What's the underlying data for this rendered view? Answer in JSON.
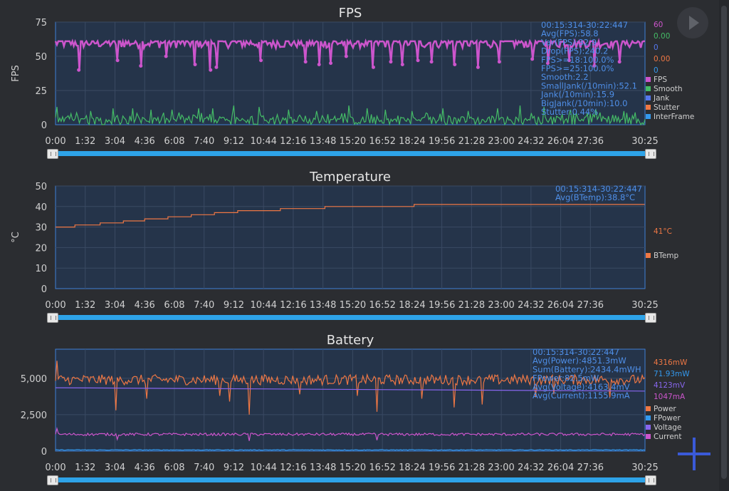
{
  "time_ticks": [
    "0:00",
    "1:32",
    "3:04",
    "4:36",
    "6:08",
    "7:40",
    "9:12",
    "10:44",
    "12:16",
    "13:48",
    "15:20",
    "16:52",
    "18:24",
    "19:56",
    "21:28",
    "23:00",
    "24:32",
    "26:04",
    "27:36",
    "30:25"
  ],
  "chart_data": [
    {
      "type": "line",
      "title": "FPS",
      "ylabel": "FPS",
      "ylim": [
        0,
        75
      ],
      "yticks": [
        0,
        25,
        50,
        75
      ],
      "grid": true,
      "stats": [
        "00:15:314-30:22:447",
        "Avg(FPS):58.8",
        "Var(FPS):32.9",
        "Drop(FPS):240.2",
        "FPS>=18:100.0%",
        "FPS>=25:100.0%",
        "Smooth:2.2",
        "SmallJank(/10min):52.1",
        "Jank(/10min):15.9",
        "BigJank(/10min):10.0",
        "Stutter:0.44%"
      ],
      "current_values": [
        {
          "text": "60",
          "color": "#cc55cc"
        },
        {
          "text": "0.00",
          "color": "#44bb66"
        },
        {
          "text": "0",
          "color": "#5577ee"
        },
        {
          "text": "0.00",
          "color": "#ee7744"
        },
        {
          "text": "0",
          "color": "#3399ee"
        }
      ],
      "legend": [
        {
          "name": "FPS",
          "color": "#cc55cc"
        },
        {
          "name": "Smooth",
          "color": "#44bb66"
        },
        {
          "name": "Jank",
          "color": "#5577ee"
        },
        {
          "name": "Stutter",
          "color": "#ee7744"
        },
        {
          "name": "InterFrame",
          "color": "#3399ee"
        }
      ],
      "series": [
        {
          "name": "FPS",
          "color": "#cc55cc",
          "baseline": 60,
          "noise": 4,
          "dips": [
            [
              1.2,
              40
            ],
            [
              3.2,
              47
            ],
            [
              4.4,
              43
            ],
            [
              5.7,
              50
            ],
            [
              7.2,
              44
            ],
            [
              8.0,
              40
            ],
            [
              8.3,
              42
            ],
            [
              10.6,
              47
            ],
            [
              12.9,
              46
            ],
            [
              13.6,
              44
            ],
            [
              14.2,
              45
            ],
            [
              15.0,
              50
            ],
            [
              16.4,
              42
            ],
            [
              17.3,
              46
            ],
            [
              17.9,
              44
            ],
            [
              18.7,
              47
            ],
            [
              19.4,
              46
            ],
            [
              20.6,
              44
            ],
            [
              21.8,
              42
            ],
            [
              22.9,
              46
            ],
            [
              24.6,
              48
            ],
            [
              25.4,
              45
            ],
            [
              26.5,
              47
            ],
            [
              27.8,
              43
            ],
            [
              29.1,
              46
            ]
          ]
        },
        {
          "name": "Smooth",
          "color": "#44bb66",
          "baseline": 3,
          "noise": 3,
          "spikes": [
            [
              0.1,
              13
            ],
            [
              1.8,
              10
            ],
            [
              3.0,
              12
            ],
            [
              4.0,
              12
            ],
            [
              4.9,
              11
            ],
            [
              6.0,
              11
            ],
            [
              7.4,
              12
            ],
            [
              8.1,
              12
            ],
            [
              9.2,
              14
            ],
            [
              10.5,
              13
            ],
            [
              12.0,
              11
            ],
            [
              13.5,
              10
            ],
            [
              15.1,
              14
            ],
            [
              16.1,
              12
            ],
            [
              17.0,
              11
            ],
            [
              18.4,
              10
            ],
            [
              20.0,
              12
            ],
            [
              21.3,
              10
            ],
            [
              22.8,
              12
            ],
            [
              24.0,
              14
            ],
            [
              25.2,
              13
            ],
            [
              26.6,
              11
            ],
            [
              27.9,
              11
            ],
            [
              29.3,
              10
            ]
          ]
        }
      ]
    },
    {
      "type": "line",
      "title": "Temperature",
      "ylabel": "°C",
      "ylim": [
        0,
        50
      ],
      "yticks": [
        0,
        10,
        20,
        30,
        40,
        50
      ],
      "grid": true,
      "stats": [
        "00:15:314-30:22:447",
        "Avg(BTemp):38.8°C"
      ],
      "current_values": [
        {
          "text": "41°C",
          "color": "#ee7744"
        }
      ],
      "legend": [
        {
          "name": "BTemp",
          "color": "#ee7744"
        }
      ],
      "series": [
        {
          "name": "BTemp",
          "color": "#ee7744",
          "steps": [
            [
              0,
              30
            ],
            [
              1.0,
              31
            ],
            [
              2.3,
              32
            ],
            [
              3.5,
              33
            ],
            [
              4.6,
              34
            ],
            [
              5.8,
              35
            ],
            [
              7.0,
              36
            ],
            [
              8.2,
              37
            ],
            [
              9.4,
              38
            ],
            [
              11.6,
              39
            ],
            [
              13.9,
              40
            ],
            [
              18.5,
              41
            ],
            [
              30.4,
              41
            ]
          ]
        }
      ]
    },
    {
      "type": "line",
      "title": "Battery",
      "ylabel": "",
      "ylim": [
        0,
        7000
      ],
      "yticks": [
        0,
        2500,
        5000
      ],
      "ytick_labels": [
        "0",
        "2,500",
        "5,000"
      ],
      "grid": true,
      "stats": [
        "00:15:314-30:22:447",
        "Avg(Power):4851.3mW",
        "Sum(Battery):2434.4mWH",
        "FPower:82.5mW",
        "Avg(Voltage):4163.4mV",
        "Avg(Current):1155.9mA"
      ],
      "current_values": [
        {
          "text": "4316mW",
          "color": "#ee7744"
        },
        {
          "text": "71.93mW",
          "color": "#3399ee"
        },
        {
          "text": "4123mV",
          "color": "#8866ee"
        },
        {
          "text": "1047mA",
          "color": "#cc55cc"
        }
      ],
      "legend": [
        {
          "name": "Power",
          "color": "#ee7744"
        },
        {
          "name": "FPower",
          "color": "#3399ee"
        },
        {
          "name": "Voltage",
          "color": "#8866ee"
        },
        {
          "name": "Current",
          "color": "#cc55cc"
        }
      ],
      "series": [
        {
          "name": "Power",
          "color": "#ee7744",
          "baseline": 4900,
          "noise": 350,
          "dips": [
            [
              0.1,
              6200
            ],
            [
              3.1,
              2800
            ],
            [
              4.7,
              3600
            ],
            [
              8.5,
              3800
            ],
            [
              9.0,
              3400
            ],
            [
              10.0,
              2500
            ],
            [
              12.6,
              3900
            ],
            [
              15.6,
              3800
            ],
            [
              16.6,
              2700
            ],
            [
              18.9,
              3600
            ],
            [
              20.6,
              3000
            ],
            [
              22.0,
              3200
            ],
            [
              24.8,
              3700
            ],
            [
              25.7,
              3900
            ],
            [
              28.6,
              3700
            ]
          ]
        },
        {
          "name": "FPower",
          "color": "#3399ee",
          "baseline": 80,
          "noise": 20
        },
        {
          "name": "Voltage",
          "color": "#8866ee",
          "values_linear": [
            [
              0,
              4350
            ],
            [
              30.4,
              4120
            ]
          ]
        },
        {
          "name": "Current",
          "color": "#cc55cc",
          "baseline": 1150,
          "noise": 90,
          "dips": [
            [
              0.1,
              1550
            ],
            [
              3.2,
              800
            ],
            [
              10.0,
              700
            ],
            [
              16.6,
              750
            ]
          ]
        }
      ]
    }
  ]
}
